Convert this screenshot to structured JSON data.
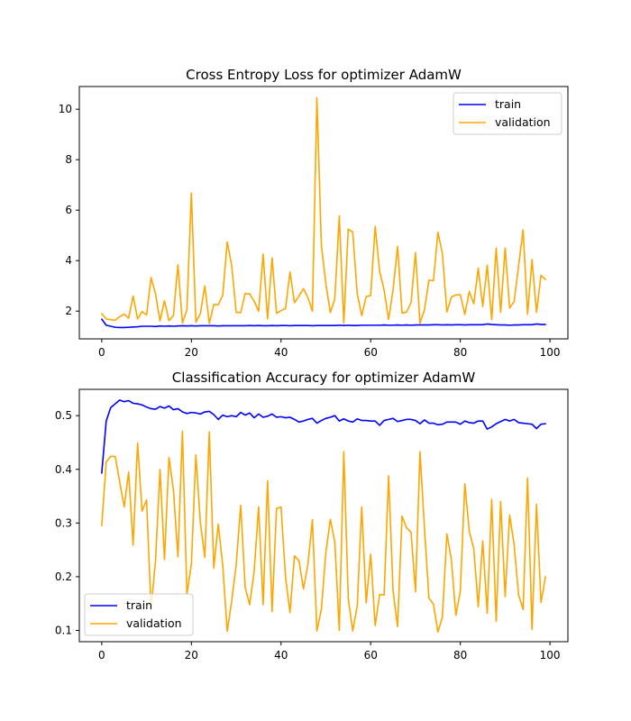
{
  "chart_data": [
    {
      "type": "line",
      "title": "Cross Entropy Loss for optimizer AdamW",
      "xlabel": "",
      "ylabel": "",
      "xlim": [
        -5,
        104
      ],
      "ylim": [
        0.9,
        10.9
      ],
      "xticks": [
        0,
        20,
        40,
        60,
        80,
        100
      ],
      "yticks": [
        2,
        4,
        6,
        8,
        10
      ],
      "grid": false,
      "legend": "top-right",
      "x": [
        0,
        1,
        2,
        3,
        4,
        5,
        6,
        7,
        8,
        9,
        10,
        11,
        12,
        13,
        14,
        15,
        16,
        17,
        18,
        19,
        20,
        21,
        22,
        23,
        24,
        25,
        26,
        27,
        28,
        29,
        30,
        31,
        32,
        33,
        34,
        35,
        36,
        37,
        38,
        39,
        40,
        41,
        42,
        43,
        44,
        45,
        46,
        47,
        48,
        49,
        50,
        51,
        52,
        53,
        54,
        55,
        56,
        57,
        58,
        59,
        60,
        61,
        62,
        63,
        64,
        65,
        66,
        67,
        68,
        69,
        70,
        71,
        72,
        73,
        74,
        75,
        76,
        77,
        78,
        79,
        80,
        81,
        82,
        83,
        84,
        85,
        86,
        87,
        88,
        89,
        90,
        91,
        92,
        93,
        94,
        95,
        96,
        97,
        98,
        99
      ],
      "series": [
        {
          "name": "train",
          "color": "#0000ff",
          "values": [
            1.68,
            1.44,
            1.4,
            1.36,
            1.35,
            1.35,
            1.36,
            1.37,
            1.38,
            1.4,
            1.4,
            1.4,
            1.39,
            1.41,
            1.4,
            1.41,
            1.4,
            1.41,
            1.42,
            1.41,
            1.42,
            1.41,
            1.42,
            1.42,
            1.42,
            1.42,
            1.41,
            1.42,
            1.42,
            1.42,
            1.42,
            1.42,
            1.42,
            1.43,
            1.42,
            1.43,
            1.42,
            1.42,
            1.43,
            1.42,
            1.43,
            1.43,
            1.42,
            1.43,
            1.43,
            1.43,
            1.43,
            1.42,
            1.43,
            1.43,
            1.43,
            1.43,
            1.43,
            1.44,
            1.43,
            1.44,
            1.43,
            1.43,
            1.44,
            1.44,
            1.44,
            1.44,
            1.44,
            1.45,
            1.44,
            1.44,
            1.45,
            1.44,
            1.45,
            1.44,
            1.45,
            1.45,
            1.45,
            1.45,
            1.46,
            1.46,
            1.45,
            1.46,
            1.45,
            1.46,
            1.46,
            1.45,
            1.46,
            1.46,
            1.46,
            1.46,
            1.49,
            1.47,
            1.46,
            1.45,
            1.45,
            1.44,
            1.45,
            1.45,
            1.46,
            1.46,
            1.46,
            1.49,
            1.47,
            1.47
          ]
        },
        {
          "name": "validation",
          "color": "#ffa500",
          "values": [
            1.9,
            1.69,
            1.66,
            1.64,
            1.78,
            1.88,
            1.72,
            2.6,
            1.69,
            1.98,
            1.85,
            3.33,
            2.68,
            1.61,
            2.41,
            1.62,
            1.83,
            3.84,
            1.53,
            2.05,
            6.68,
            1.56,
            1.9,
            3.0,
            1.51,
            2.26,
            2.25,
            2.63,
            4.74,
            3.8,
            1.95,
            1.94,
            2.7,
            2.68,
            2.4,
            1.99,
            4.26,
            1.69,
            4.11,
            1.91,
            2.02,
            2.1,
            3.55,
            2.33,
            2.6,
            2.89,
            2.53,
            2.0,
            10.46,
            4.61,
            3.08,
            1.94,
            2.49,
            5.77,
            1.53,
            5.25,
            5.13,
            2.69,
            1.82,
            2.58,
            2.62,
            5.36,
            3.58,
            2.83,
            1.67,
            2.85,
            4.56,
            1.92,
            1.96,
            2.33,
            4.32,
            1.52,
            2.05,
            3.23,
            3.2,
            5.12,
            4.28,
            1.96,
            2.56,
            2.64,
            2.65,
            1.87,
            2.78,
            2.29,
            3.7,
            2.18,
            3.82,
            1.66,
            4.5,
            1.95,
            4.5,
            2.12,
            2.38,
            3.8,
            5.22,
            1.88,
            4.04,
            1.95,
            3.42,
            3.25
          ]
        }
      ]
    },
    {
      "type": "line",
      "title": "Classification Accuracy for optimizer AdamW",
      "xlabel": "",
      "ylabel": "",
      "xlim": [
        -5,
        104
      ],
      "ylim": [
        0.079,
        0.549
      ],
      "xticks": [
        0,
        20,
        40,
        60,
        80,
        100
      ],
      "yticks": [
        0.1,
        0.2,
        0.3,
        0.4,
        0.5
      ],
      "grid": false,
      "legend": "bottom-left",
      "x": [
        0,
        1,
        2,
        3,
        4,
        5,
        6,
        7,
        8,
        9,
        10,
        11,
        12,
        13,
        14,
        15,
        16,
        17,
        18,
        19,
        20,
        21,
        22,
        23,
        24,
        25,
        26,
        27,
        28,
        29,
        30,
        31,
        32,
        33,
        34,
        35,
        36,
        37,
        38,
        39,
        40,
        41,
        42,
        43,
        44,
        45,
        46,
        47,
        48,
        49,
        50,
        51,
        52,
        53,
        54,
        55,
        56,
        57,
        58,
        59,
        60,
        61,
        62,
        63,
        64,
        65,
        66,
        67,
        68,
        69,
        70,
        71,
        72,
        73,
        74,
        75,
        76,
        77,
        78,
        79,
        80,
        81,
        82,
        83,
        84,
        85,
        86,
        87,
        88,
        89,
        90,
        91,
        92,
        93,
        94,
        95,
        96,
        97,
        98,
        99
      ],
      "series": [
        {
          "name": "train",
          "color": "#0000ff",
          "values": [
            0.393,
            0.49,
            0.515,
            0.522,
            0.529,
            0.526,
            0.528,
            0.523,
            0.522,
            0.52,
            0.516,
            0.513,
            0.512,
            0.517,
            0.514,
            0.518,
            0.511,
            0.513,
            0.507,
            0.504,
            0.506,
            0.505,
            0.503,
            0.507,
            0.508,
            0.502,
            0.493,
            0.501,
            0.498,
            0.5,
            0.498,
            0.506,
            0.501,
            0.505,
            0.496,
            0.503,
            0.497,
            0.499,
            0.503,
            0.497,
            0.498,
            0.496,
            0.497,
            0.493,
            0.488,
            0.49,
            0.493,
            0.495,
            0.486,
            0.491,
            0.495,
            0.497,
            0.5,
            0.49,
            0.494,
            0.49,
            0.488,
            0.494,
            0.491,
            0.491,
            0.49,
            0.49,
            0.482,
            0.491,
            0.493,
            0.495,
            0.489,
            0.491,
            0.493,
            0.493,
            0.491,
            0.485,
            0.492,
            0.486,
            0.486,
            0.483,
            0.484,
            0.488,
            0.488,
            0.488,
            0.484,
            0.49,
            0.487,
            0.486,
            0.49,
            0.49,
            0.475,
            0.479,
            0.485,
            0.489,
            0.493,
            0.49,
            0.493,
            0.487,
            0.486,
            0.485,
            0.484,
            0.476,
            0.484,
            0.485
          ]
        },
        {
          "name": "validation",
          "color": "#ffa500",
          "values": [
            0.295,
            0.414,
            0.424,
            0.424,
            0.377,
            0.33,
            0.395,
            0.259,
            0.449,
            0.322,
            0.343,
            0.14,
            0.23,
            0.4,
            0.232,
            0.422,
            0.361,
            0.237,
            0.471,
            0.167,
            0.224,
            0.427,
            0.301,
            0.236,
            0.47,
            0.216,
            0.298,
            0.221,
            0.098,
            0.155,
            0.223,
            0.333,
            0.18,
            0.148,
            0.21,
            0.33,
            0.148,
            0.379,
            0.135,
            0.327,
            0.33,
            0.2,
            0.133,
            0.239,
            0.23,
            0.177,
            0.223,
            0.306,
            0.099,
            0.14,
            0.245,
            0.307,
            0.264,
            0.1,
            0.433,
            0.159,
            0.099,
            0.146,
            0.33,
            0.151,
            0.242,
            0.109,
            0.167,
            0.166,
            0.388,
            0.173,
            0.107,
            0.313,
            0.291,
            0.283,
            0.172,
            0.433,
            0.29,
            0.16,
            0.149,
            0.097,
            0.125,
            0.28,
            0.232,
            0.128,
            0.173,
            0.373,
            0.285,
            0.252,
            0.144,
            0.267,
            0.132,
            0.344,
            0.117,
            0.34,
            0.163,
            0.315,
            0.26,
            0.166,
            0.139,
            0.384,
            0.102,
            0.335,
            0.152,
            0.2
          ]
        }
      ]
    }
  ]
}
